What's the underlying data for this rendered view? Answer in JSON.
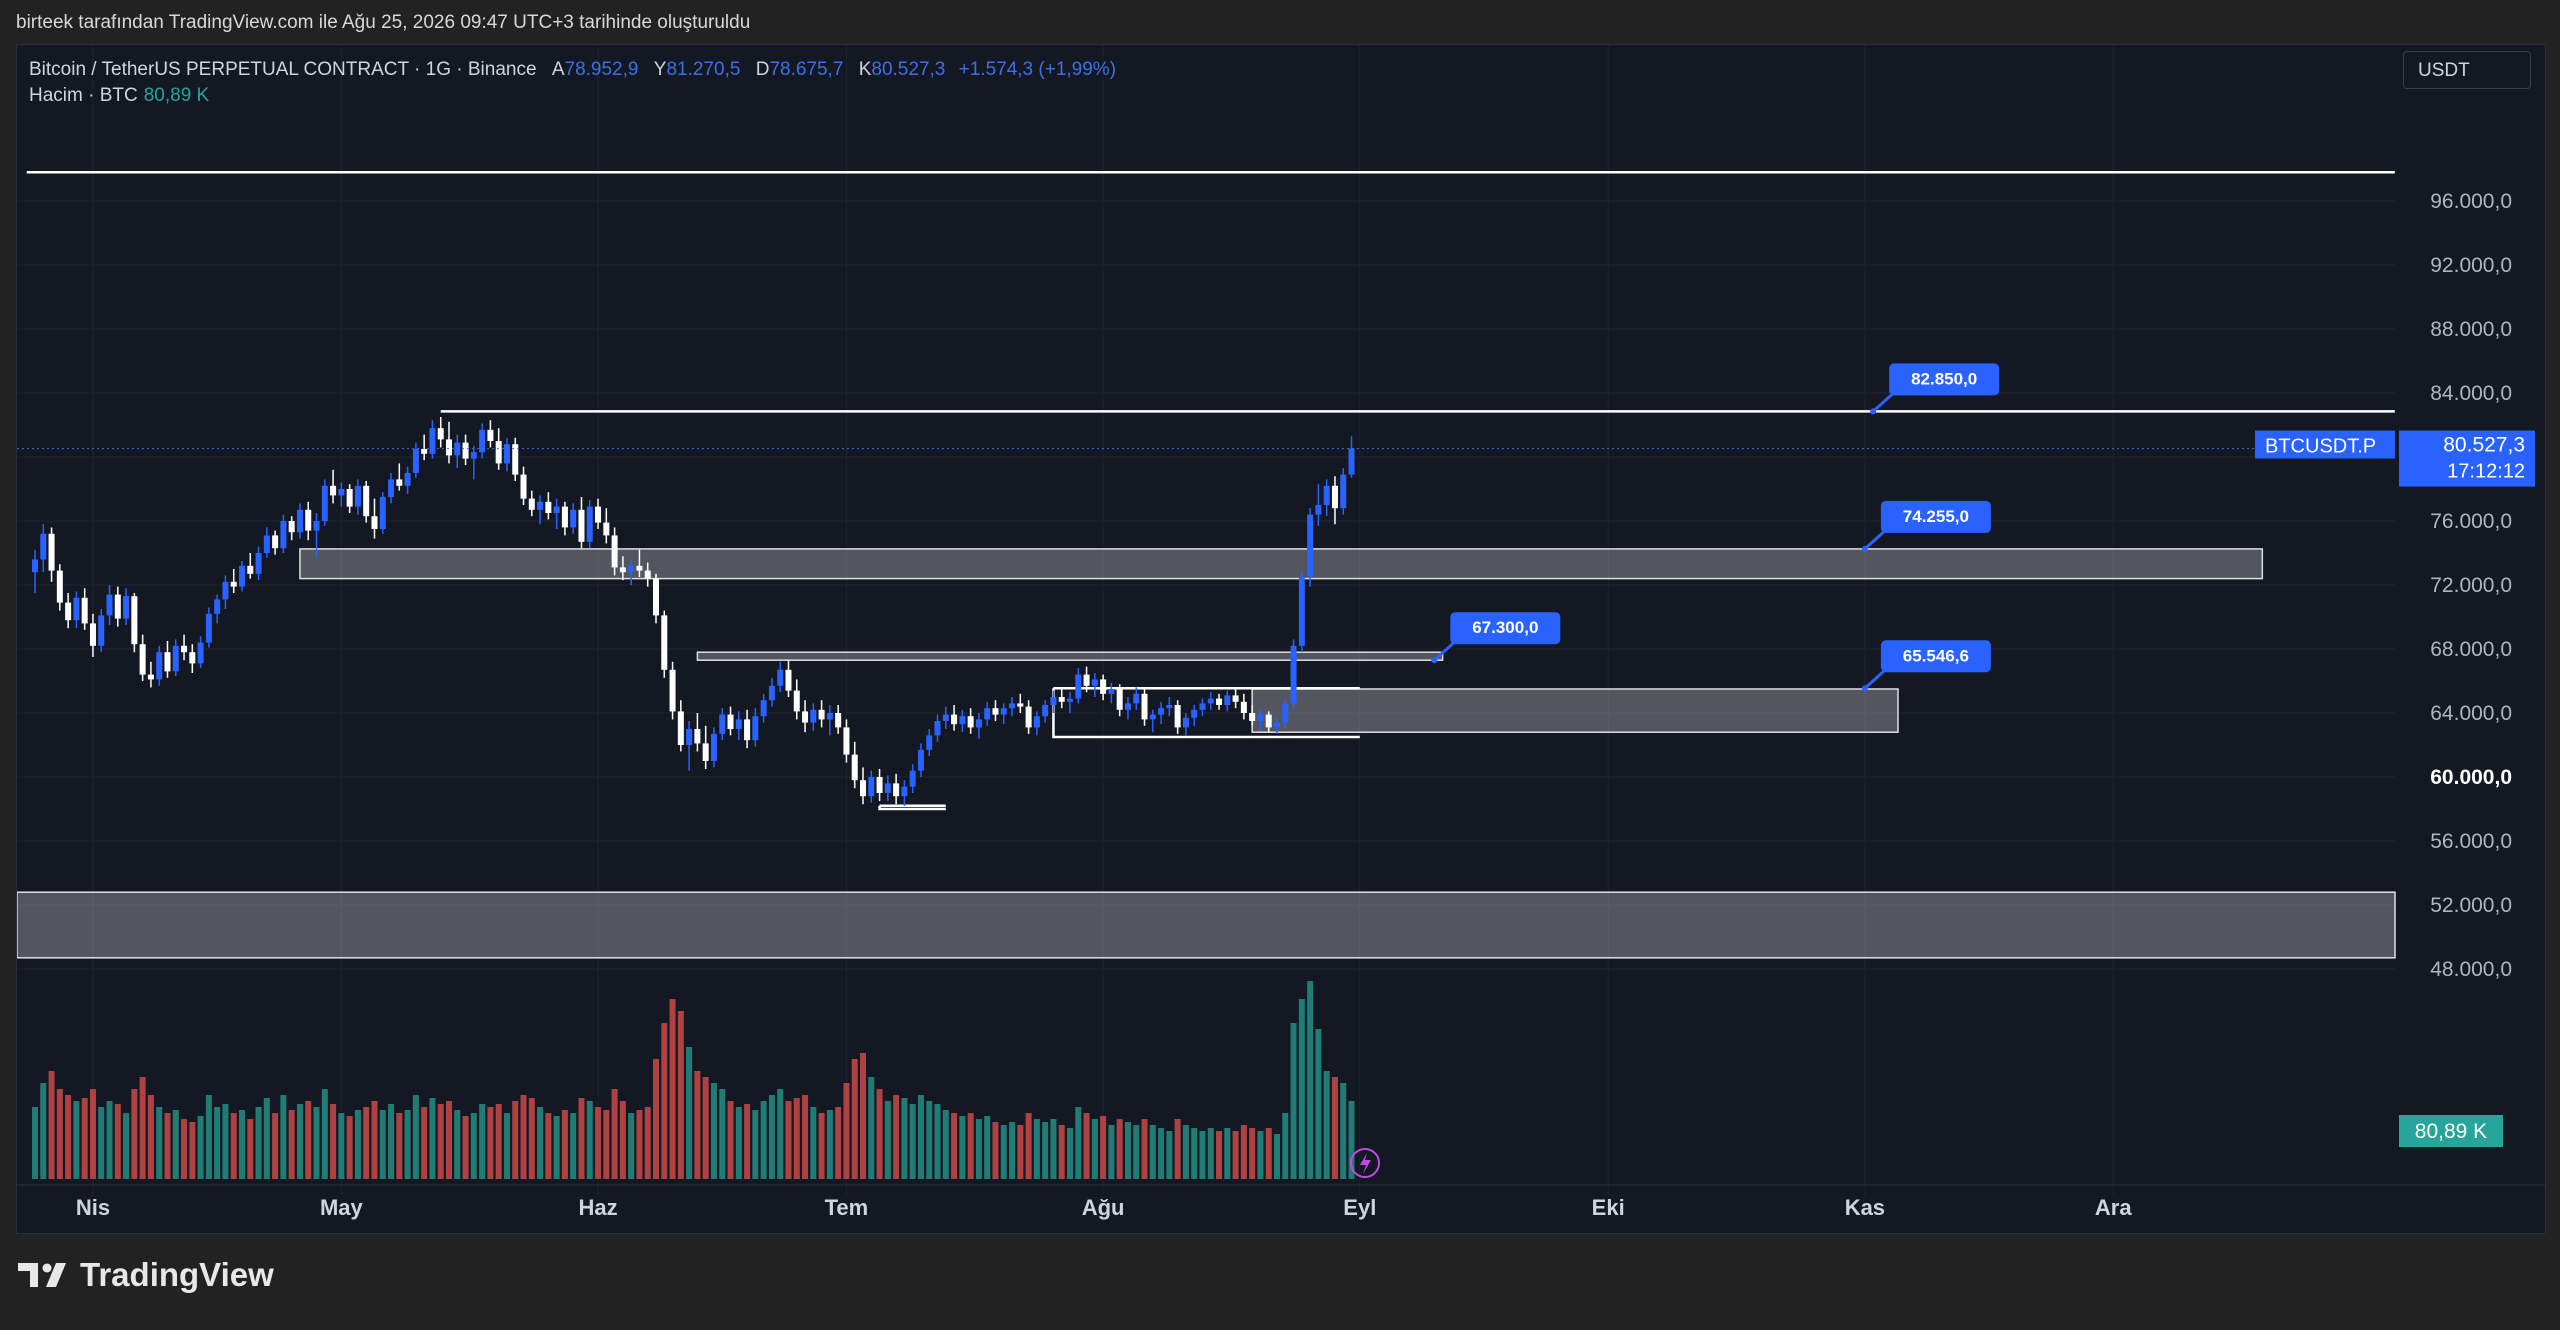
{
  "caption": "birteek tarafından TradingView.com ile Ağu 25, 2026 09:47 UTC+3 tarihinde oluşturuldu",
  "brand": "TradingView",
  "legend": {
    "symbol_line": "Bitcoin / TetherUS PERPETUAL CONTRACT · 1G · Binance",
    "open_label": "A",
    "open": "78.952,9",
    "high_label": "Y",
    "high": "81.270,5",
    "low_label": "D",
    "low": "78.675,7",
    "close_label": "K",
    "close": "80.527,3",
    "change": "+1.574,3 (+1,99%)",
    "volume_label": "Hacim · BTC",
    "volume": "80,89 K"
  },
  "currency": "USDT",
  "colors": {
    "up": "#2962ff",
    "down": "#ffffff",
    "vol_up": "#26a69a",
    "vol_down": "#ef5350",
    "background": "#141823",
    "label": "#2962ff"
  },
  "chart_data": {
    "type": "candlestick",
    "title": "",
    "ylim": [
      45000,
      100000
    ],
    "y_ticks": [
      "96.000,0",
      "92.000,0",
      "88.000,0",
      "84.000,0",
      "80.000,0",
      "76.000,0",
      "72.000,0",
      "68.000,0",
      "64.000,0",
      "60.000,0",
      "56.000,0",
      "52.000,0",
      "48.000,0"
    ],
    "y_tick_values": [
      96000,
      92000,
      88000,
      84000,
      80000,
      76000,
      72000,
      68000,
      64000,
      60000,
      56000,
      52000,
      48000
    ],
    "x_ticks": [
      "Nis",
      "May",
      "Haz",
      "Tem",
      "Ağu",
      "Eyl",
      "Eki",
      "Kas",
      "Ara"
    ],
    "x_tick_days": [
      7,
      37,
      68,
      98,
      129,
      160,
      190,
      221,
      251
    ],
    "last_price": {
      "symbol": "BTCUSDT.P",
      "price": "80.527,3",
      "countdown": "17:12:12",
      "value": 80527.3
    },
    "volume_badge": "80,89 K",
    "price_labels": [
      {
        "text": "82.850,0",
        "value": 82850,
        "day": 222
      },
      {
        "text": "74.255,0",
        "value": 74255,
        "day": 221
      },
      {
        "text": "67.300,0",
        "value": 67300,
        "day": 169
      },
      {
        "text": "65.546,6",
        "value": 65546.6,
        "day": 221
      }
    ],
    "horizontal_lines": [
      {
        "value": 97800,
        "from_day": -1,
        "to_day": 285
      },
      {
        "value": 82850,
        "from_day": 49,
        "to_day": 285
      }
    ],
    "zones": [
      {
        "top": 74255,
        "bottom": 72400,
        "from_day": 32,
        "to_day": 269
      },
      {
        "top": 67800,
        "bottom": 67300,
        "from_day": 80,
        "to_day": 170
      },
      {
        "top": 65500,
        "bottom": 62800,
        "from_day": 147,
        "to_day": 225
      }
    ],
    "bracket_boxes": [
      {
        "top": 65546.6,
        "bottom": 62500,
        "from_day": 123,
        "to_day": 160
      },
      {
        "top": 58200,
        "bottom": 58000,
        "from_day": 102,
        "to_day": 110
      }
    ],
    "volume_band": {
      "top": 52800,
      "bottom": 48700
    },
    "candles": [
      [
        0,
        72800,
        74200,
        71500,
        73600,
        120
      ],
      [
        1,
        73600,
        75800,
        72800,
        75200,
        160
      ],
      [
        2,
        75200,
        75600,
        72200,
        72900,
        180
      ],
      [
        3,
        72900,
        73300,
        70400,
        70900,
        150
      ],
      [
        4,
        70900,
        71500,
        69300,
        69800,
        140
      ],
      [
        5,
        69800,
        71600,
        69300,
        71200,
        130
      ],
      [
        6,
        71200,
        71800,
        69200,
        69600,
        135
      ],
      [
        7,
        69600,
        70200,
        67500,
        68200,
        150
      ],
      [
        8,
        68200,
        70500,
        67800,
        70100,
        120
      ],
      [
        9,
        70100,
        72000,
        69500,
        71400,
        130
      ],
      [
        10,
        71400,
        71900,
        69400,
        69900,
        125
      ],
      [
        11,
        69900,
        71800,
        69500,
        71300,
        110
      ],
      [
        12,
        71300,
        71500,
        67800,
        68300,
        150
      ],
      [
        13,
        68300,
        68900,
        66000,
        66400,
        170
      ],
      [
        14,
        66400,
        67200,
        65600,
        66100,
        140
      ],
      [
        15,
        66100,
        68200,
        65700,
        67800,
        120
      ],
      [
        16,
        67800,
        68500,
        66200,
        66600,
        110
      ],
      [
        17,
        66600,
        68600,
        66300,
        68200,
        115
      ],
      [
        18,
        68200,
        68900,
        67300,
        67800,
        100
      ],
      [
        19,
        67800,
        68300,
        66500,
        67100,
        95
      ],
      [
        20,
        67100,
        68800,
        66800,
        68400,
        105
      ],
      [
        21,
        68400,
        70600,
        68100,
        70200,
        140
      ],
      [
        22,
        70200,
        71400,
        69600,
        71100,
        120
      ],
      [
        23,
        71100,
        72600,
        70500,
        72200,
        125
      ],
      [
        24,
        72200,
        73000,
        71500,
        71900,
        110
      ],
      [
        25,
        71900,
        73500,
        71600,
        73200,
        115
      ],
      [
        26,
        73200,
        74000,
        72400,
        72700,
        100
      ],
      [
        27,
        72700,
        74400,
        72300,
        74000,
        120
      ],
      [
        28,
        74000,
        75600,
        73700,
        75100,
        135
      ],
      [
        29,
        75100,
        75400,
        73900,
        74300,
        110
      ],
      [
        30,
        74300,
        76400,
        74000,
        76000,
        140
      ],
      [
        31,
        76000,
        76300,
        74800,
        75300,
        115
      ],
      [
        32,
        75300,
        77100,
        74900,
        76700,
        125
      ],
      [
        33,
        76700,
        77200,
        74800,
        75400,
        130
      ],
      [
        34,
        75400,
        76500,
        73700,
        76000,
        120
      ],
      [
        35,
        76000,
        78600,
        75700,
        78200,
        150
      ],
      [
        36,
        78200,
        79200,
        77100,
        77600,
        125
      ],
      [
        37,
        77600,
        78400,
        76900,
        78000,
        110
      ],
      [
        38,
        78000,
        78300,
        76500,
        76900,
        105
      ],
      [
        39,
        76900,
        78600,
        76400,
        78200,
        115
      ],
      [
        40,
        78200,
        78500,
        75900,
        76300,
        120
      ],
      [
        41,
        76300,
        77400,
        74900,
        75500,
        130
      ],
      [
        42,
        75500,
        77800,
        75200,
        77500,
        115
      ],
      [
        43,
        77500,
        79000,
        77100,
        78600,
        125
      ],
      [
        44,
        78600,
        79600,
        77900,
        78200,
        110
      ],
      [
        45,
        78200,
        79400,
        77700,
        79000,
        115
      ],
      [
        46,
        79000,
        80900,
        78700,
        80500,
        140
      ],
      [
        47,
        80500,
        81400,
        79800,
        80200,
        120
      ],
      [
        48,
        80200,
        82300,
        79900,
        81800,
        135
      ],
      [
        49,
        81800,
        82500,
        80600,
        81100,
        125
      ],
      [
        50,
        81100,
        82200,
        79600,
        80100,
        130
      ],
      [
        51,
        80100,
        81400,
        79300,
        80900,
        115
      ],
      [
        52,
        80900,
        81400,
        79500,
        79900,
        105
      ],
      [
        53,
        79900,
        80700,
        78600,
        80300,
        110
      ],
      [
        54,
        80300,
        82100,
        79900,
        81700,
        125
      ],
      [
        55,
        81700,
        82300,
        80600,
        81000,
        120
      ],
      [
        56,
        81000,
        81800,
        79200,
        79600,
        125
      ],
      [
        57,
        79600,
        81200,
        79100,
        80800,
        110
      ],
      [
        58,
        80800,
        81200,
        78500,
        78900,
        130
      ],
      [
        59,
        78900,
        79400,
        77000,
        77400,
        140
      ],
      [
        60,
        77400,
        77900,
        76300,
        76700,
        135
      ],
      [
        61,
        76700,
        77600,
        75800,
        77200,
        120
      ],
      [
        62,
        77200,
        77800,
        76100,
        76500,
        110
      ],
      [
        63,
        76500,
        77400,
        75500,
        76900,
        105
      ],
      [
        64,
        76900,
        77200,
        75100,
        75600,
        115
      ],
      [
        65,
        75600,
        77100,
        75200,
        76700,
        110
      ],
      [
        66,
        76700,
        77500,
        74300,
        74700,
        135
      ],
      [
        67,
        74700,
        77300,
        74300,
        76900,
        130
      ],
      [
        68,
        76900,
        77400,
        75500,
        75900,
        120
      ],
      [
        69,
        75900,
        76800,
        74600,
        75100,
        115
      ],
      [
        70,
        75100,
        75600,
        72600,
        73100,
        150
      ],
      [
        71,
        73100,
        73800,
        72300,
        72800,
        130
      ],
      [
        72,
        72800,
        73600,
        72000,
        73200,
        110
      ],
      [
        73,
        73200,
        74200,
        72500,
        72900,
        115
      ],
      [
        74,
        72900,
        73400,
        71900,
        72400,
        120
      ],
      [
        75,
        72400,
        72700,
        69600,
        70100,
        200
      ],
      [
        76,
        70100,
        70400,
        66200,
        66700,
        260
      ],
      [
        77,
        66700,
        67200,
        63600,
        64100,
        300
      ],
      [
        78,
        64100,
        64800,
        61600,
        62000,
        280
      ],
      [
        79,
        62000,
        63500,
        60400,
        63000,
        220
      ],
      [
        80,
        63000,
        64000,
        61600,
        62100,
        180
      ],
      [
        81,
        62100,
        63200,
        60500,
        61000,
        170
      ],
      [
        82,
        61000,
        63100,
        60600,
        62700,
        160
      ],
      [
        83,
        62700,
        64300,
        62300,
        63900,
        150
      ],
      [
        84,
        63900,
        64400,
        62600,
        63000,
        130
      ],
      [
        85,
        63000,
        64100,
        62300,
        63600,
        120
      ],
      [
        86,
        63600,
        64200,
        61800,
        62300,
        125
      ],
      [
        87,
        62300,
        64300,
        61900,
        63800,
        115
      ],
      [
        88,
        63800,
        65200,
        63400,
        64800,
        130
      ],
      [
        89,
        64800,
        66200,
        64400,
        65700,
        140
      ],
      [
        90,
        65700,
        67200,
        65300,
        66700,
        150
      ],
      [
        91,
        66700,
        67300,
        65000,
        65400,
        130
      ],
      [
        92,
        65400,
        66100,
        63600,
        64100,
        135
      ],
      [
        93,
        64100,
        64800,
        62800,
        63400,
        140
      ],
      [
        94,
        63400,
        64600,
        62900,
        64200,
        120
      ],
      [
        95,
        64200,
        64800,
        63100,
        63600,
        110
      ],
      [
        96,
        63600,
        64500,
        62600,
        64000,
        115
      ],
      [
        97,
        64000,
        64500,
        62700,
        63100,
        120
      ],
      [
        98,
        63100,
        63600,
        60900,
        61400,
        160
      ],
      [
        99,
        61400,
        62200,
        59300,
        59800,
        200
      ],
      [
        100,
        59800,
        60600,
        58300,
        58800,
        210
      ],
      [
        101,
        58800,
        60400,
        58400,
        60000,
        170
      ],
      [
        102,
        60000,
        60500,
        58500,
        59000,
        150
      ],
      [
        103,
        59000,
        60100,
        58500,
        59600,
        130
      ],
      [
        104,
        59600,
        60200,
        58300,
        58800,
        140
      ],
      [
        105,
        58800,
        59800,
        58200,
        59400,
        135
      ],
      [
        106,
        59400,
        60800,
        59000,
        60400,
        125
      ],
      [
        107,
        60400,
        62100,
        60000,
        61700,
        140
      ],
      [
        108,
        61700,
        63000,
        61300,
        62600,
        130
      ],
      [
        109,
        62600,
        63900,
        62200,
        63500,
        125
      ],
      [
        110,
        63500,
        64400,
        63000,
        63900,
        115
      ],
      [
        111,
        63900,
        64500,
        62900,
        63300,
        110
      ],
      [
        112,
        63300,
        64200,
        62800,
        63800,
        105
      ],
      [
        113,
        63800,
        64300,
        62700,
        63100,
        110
      ],
      [
        114,
        63100,
        64000,
        62400,
        63600,
        100
      ],
      [
        115,
        63600,
        64700,
        63200,
        64300,
        105
      ],
      [
        116,
        64300,
        64800,
        63500,
        63900,
        95
      ],
      [
        117,
        63900,
        64600,
        63300,
        64300,
        90
      ],
      [
        118,
        64300,
        65000,
        63800,
        64600,
        95
      ],
      [
        119,
        64600,
        65200,
        64000,
        64400,
        90
      ],
      [
        120,
        64400,
        64800,
        62700,
        63100,
        110
      ],
      [
        121,
        63100,
        64100,
        62600,
        63800,
        100
      ],
      [
        122,
        63800,
        64800,
        63400,
        64500,
        95
      ],
      [
        123,
        64500,
        65400,
        64000,
        65000,
        100
      ],
      [
        124,
        65000,
        65500,
        64300,
        64700,
        90
      ],
      [
        125,
        64700,
        65300,
        64000,
        64900,
        85
      ],
      [
        126,
        64900,
        66800,
        64600,
        66400,
        120
      ],
      [
        127,
        66400,
        66900,
        65300,
        65700,
        110
      ],
      [
        128,
        65700,
        66500,
        65000,
        66100,
        100
      ],
      [
        129,
        66100,
        66400,
        64800,
        65200,
        105
      ],
      [
        130,
        65200,
        65900,
        64600,
        65500,
        90
      ],
      [
        131,
        65500,
        65800,
        63800,
        64200,
        100
      ],
      [
        132,
        64200,
        65000,
        63600,
        64600,
        95
      ],
      [
        133,
        64600,
        65600,
        64200,
        65200,
        90
      ],
      [
        134,
        65200,
        65600,
        63200,
        63600,
        100
      ],
      [
        135,
        63600,
        64200,
        62800,
        63900,
        90
      ],
      [
        136,
        63900,
        64700,
        63300,
        64300,
        85
      ],
      [
        137,
        64300,
        65000,
        63800,
        64500,
        80
      ],
      [
        138,
        64500,
        64800,
        62700,
        63100,
        100
      ],
      [
        139,
        63100,
        64000,
        62600,
        63700,
        90
      ],
      [
        140,
        63700,
        64500,
        63200,
        64200,
        85
      ],
      [
        141,
        64200,
        64900,
        63800,
        64600,
        80
      ],
      [
        142,
        64600,
        65300,
        64200,
        64900,
        85
      ],
      [
        143,
        64900,
        65200,
        64200,
        64500,
        80
      ],
      [
        144,
        64500,
        65400,
        64100,
        65100,
        85
      ],
      [
        145,
        65100,
        65500,
        64300,
        64700,
        80
      ],
      [
        146,
        64700,
        65200,
        63600,
        64000,
        90
      ],
      [
        147,
        64000,
        64500,
        63200,
        63500,
        85
      ],
      [
        148,
        63500,
        64200,
        62900,
        63900,
        80
      ],
      [
        149,
        63900,
        64100,
        62800,
        63100,
        85
      ],
      [
        150,
        63100,
        63700,
        62700,
        63400,
        75
      ],
      [
        151,
        63400,
        64900,
        63000,
        64600,
        110
      ],
      [
        152,
        64600,
        68600,
        64200,
        68200,
        260
      ],
      [
        153,
        68200,
        72800,
        67800,
        72500,
        300
      ],
      [
        154,
        72500,
        76800,
        71900,
        76400,
        330
      ],
      [
        155,
        76400,
        78300,
        75700,
        77000,
        250
      ],
      [
        156,
        77000,
        78600,
        76300,
        78200,
        180
      ],
      [
        157,
        78200,
        78800,
        75800,
        76800,
        170
      ],
      [
        158,
        76800,
        79300,
        76400,
        78900,
        160
      ],
      [
        159,
        78900,
        81300,
        78700,
        80527,
        130
      ]
    ]
  }
}
